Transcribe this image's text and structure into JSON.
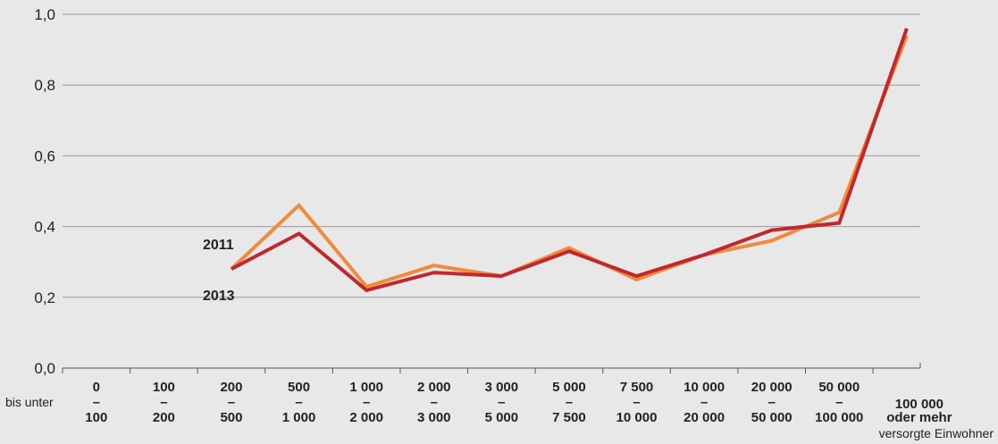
{
  "chart_data": {
    "type": "line",
    "ylim": [
      0,
      1.0
    ],
    "yticks": [
      "0,0",
      "0,2",
      "0,4",
      "0,6",
      "0,8",
      "1,0"
    ],
    "ytick_values": [
      0,
      0.2,
      0.4,
      0.6,
      0.8,
      1.0
    ],
    "grid": true,
    "x_prefix": "bis unter",
    "x_suffix": "versorgte Einwohner",
    "categories": [
      {
        "from": "0",
        "dash": "–",
        "to": "100"
      },
      {
        "from": "100",
        "dash": "–",
        "to": "200"
      },
      {
        "from": "200",
        "dash": "–",
        "to": "500"
      },
      {
        "from": "500",
        "dash": "–",
        "to": "1 000"
      },
      {
        "from": "1 000",
        "dash": "–",
        "to": "2 000"
      },
      {
        "from": "2 000",
        "dash": "–",
        "to": "3 000"
      },
      {
        "from": "3 000",
        "dash": "–",
        "to": "5 000"
      },
      {
        "from": "5 000",
        "dash": "–",
        "to": "7 500"
      },
      {
        "from": "7 500",
        "dash": "–",
        "to": "10 000"
      },
      {
        "from": "10 000",
        "dash": "–",
        "to": "20 000"
      },
      {
        "from": "20 000",
        "dash": "–",
        "to": "50 000"
      },
      {
        "from": "50 000",
        "dash": "–",
        "to": "100 000"
      },
      {
        "line1": "100 000",
        "line2": "oder mehr"
      }
    ],
    "series": [
      {
        "name": "2011",
        "color": "#f08a3c",
        "values": [
          null,
          null,
          0.28,
          0.46,
          0.23,
          0.29,
          0.26,
          0.34,
          0.25,
          0.32,
          0.36,
          0.44,
          0.94
        ]
      },
      {
        "name": "2013",
        "color": "#c0282d",
        "values": [
          null,
          null,
          0.28,
          0.38,
          0.22,
          0.27,
          0.26,
          0.33,
          0.26,
          0.32,
          0.39,
          0.41,
          0.96
        ]
      }
    ]
  }
}
